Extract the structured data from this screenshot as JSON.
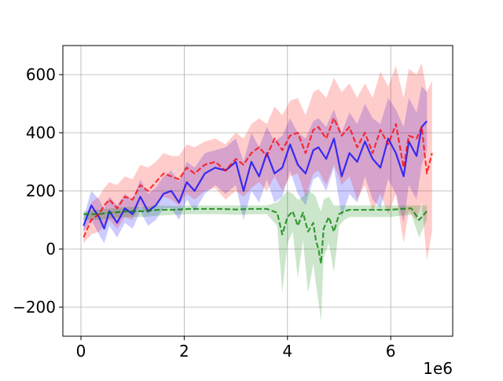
{
  "chart_data": {
    "type": "line",
    "title": "",
    "xlabel": "",
    "ylabel": "",
    "x_offset_label": "1e6",
    "xlim": [
      -0.35,
      7.2
    ],
    "ylim": [
      -300,
      700
    ],
    "xticks": [
      0,
      2,
      4,
      6
    ],
    "xtick_labels": [
      "0",
      "2",
      "4",
      "6"
    ],
    "yticks": [
      -200,
      0,
      200,
      400,
      600
    ],
    "ytick_labels": [
      "−200",
      "0",
      "200",
      "400",
      "600"
    ],
    "grid": true,
    "legend": "none",
    "series": [
      {
        "color": "#0000ff",
        "style": "solid",
        "x": [
          0.05,
          0.2,
          0.35,
          0.45,
          0.55,
          0.7,
          0.85,
          1.0,
          1.15,
          1.3,
          1.45,
          1.6,
          1.75,
          1.9,
          2.05,
          2.2,
          2.4,
          2.6,
          2.8,
          3.0,
          3.15,
          3.3,
          3.45,
          3.6,
          3.75,
          3.9,
          4.05,
          4.2,
          4.35,
          4.5,
          4.6,
          4.75,
          4.9,
          5.05,
          5.2,
          5.35,
          5.5,
          5.65,
          5.8,
          5.95,
          6.1,
          6.25,
          6.35,
          6.5,
          6.6,
          6.7
        ],
        "y": [
          80,
          150,
          110,
          70,
          130,
          90,
          140,
          120,
          180,
          130,
          150,
          190,
          200,
          160,
          230,
          200,
          260,
          280,
          270,
          300,
          200,
          300,
          250,
          330,
          260,
          280,
          360,
          290,
          260,
          340,
          350,
          310,
          380,
          250,
          330,
          300,
          370,
          310,
          280,
          380,
          330,
          250,
          370,
          320,
          420,
          440
        ],
        "band_upper": [
          110,
          200,
          170,
          140,
          180,
          150,
          190,
          170,
          240,
          190,
          210,
          250,
          270,
          230,
          300,
          280,
          330,
          340,
          350,
          380,
          300,
          400,
          350,
          420,
          370,
          390,
          450,
          400,
          380,
          440,
          450,
          420,
          480,
          400,
          470,
          430,
          500,
          450,
          430,
          520,
          480,
          420,
          520,
          470,
          560,
          540
        ],
        "band_lower": [
          60,
          100,
          50,
          20,
          80,
          40,
          90,
          70,
          130,
          80,
          100,
          140,
          140,
          100,
          170,
          130,
          190,
          220,
          190,
          220,
          100,
          200,
          160,
          240,
          160,
          180,
          270,
          190,
          150,
          240,
          250,
          200,
          280,
          110,
          190,
          160,
          250,
          170,
          140,
          240,
          190,
          90,
          220,
          170,
          290,
          340
        ]
      },
      {
        "color": "#ff0000",
        "style": "dashed",
        "x": [
          0.05,
          0.2,
          0.35,
          0.45,
          0.55,
          0.7,
          0.85,
          1.0,
          1.15,
          1.3,
          1.45,
          1.6,
          1.75,
          1.9,
          2.05,
          2.2,
          2.4,
          2.6,
          2.8,
          3.0,
          3.15,
          3.3,
          3.45,
          3.6,
          3.75,
          3.9,
          4.05,
          4.2,
          4.35,
          4.5,
          4.6,
          4.75,
          4.9,
          5.05,
          5.2,
          5.35,
          5.5,
          5.65,
          5.8,
          5.95,
          6.1,
          6.25,
          6.35,
          6.5,
          6.6,
          6.7,
          6.8
        ],
        "y": [
          40,
          100,
          120,
          150,
          170,
          140,
          180,
          170,
          220,
          200,
          230,
          260,
          250,
          240,
          280,
          260,
          290,
          300,
          270,
          310,
          290,
          330,
          350,
          320,
          380,
          340,
          390,
          400,
          330,
          410,
          420,
          380,
          450,
          390,
          420,
          350,
          400,
          330,
          410,
          360,
          430,
          280,
          390,
          380,
          420,
          260,
          330
        ],
        "band_upper": [
          80,
          160,
          180,
          210,
          230,
          220,
          250,
          240,
          290,
          280,
          300,
          330,
          320,
          320,
          360,
          350,
          370,
          380,
          360,
          400,
          380,
          430,
          450,
          430,
          490,
          460,
          510,
          520,
          460,
          540,
          550,
          520,
          590,
          540,
          570,
          520,
          570,
          520,
          610,
          560,
          630,
          520,
          620,
          600,
          640,
          540,
          580
        ],
        "band_lower": [
          20,
          50,
          60,
          80,
          100,
          70,
          110,
          100,
          150,
          120,
          150,
          180,
          170,
          150,
          190,
          170,
          200,
          210,
          170,
          200,
          180,
          210,
          230,
          200,
          250,
          200,
          250,
          260,
          180,
          260,
          270,
          220,
          290,
          220,
          250,
          170,
          220,
          130,
          190,
          120,
          190,
          20,
          130,
          100,
          160,
          -40,
          60
        ]
      },
      {
        "color": "#008000",
        "style": "dashed",
        "x": [
          0.05,
          0.3,
          0.6,
          0.9,
          1.2,
          1.5,
          1.8,
          2.1,
          2.4,
          2.7,
          3.0,
          3.3,
          3.6,
          3.8,
          3.9,
          4.0,
          4.1,
          4.2,
          4.3,
          4.4,
          4.5,
          4.55,
          4.6,
          4.65,
          4.7,
          4.8,
          4.9,
          5.0,
          5.1,
          5.2,
          5.4,
          5.6,
          5.8,
          6.0,
          6.2,
          6.4,
          6.55,
          6.7
        ],
        "y": [
          120,
          120,
          125,
          130,
          130,
          135,
          135,
          138,
          138,
          138,
          136,
          138,
          138,
          125,
          50,
          110,
          130,
          80,
          125,
          60,
          90,
          30,
          0,
          -50,
          70,
          110,
          60,
          120,
          130,
          135,
          135,
          135,
          135,
          135,
          138,
          140,
          100,
          130
        ],
        "band_upper": [
          130,
          135,
          140,
          145,
          145,
          150,
          148,
          150,
          150,
          150,
          150,
          150,
          150,
          160,
          180,
          200,
          190,
          170,
          180,
          200,
          190,
          180,
          150,
          130,
          170,
          180,
          150,
          150,
          150,
          150,
          150,
          150,
          150,
          150,
          150,
          150,
          150,
          150
        ],
        "band_lower": [
          100,
          100,
          105,
          110,
          110,
          115,
          118,
          120,
          120,
          120,
          118,
          120,
          120,
          80,
          -150,
          20,
          60,
          -100,
          30,
          -150,
          -50,
          -120,
          -180,
          -250,
          -30,
          20,
          -80,
          80,
          100,
          110,
          110,
          110,
          110,
          110,
          115,
          118,
          40,
          100
        ]
      }
    ]
  }
}
